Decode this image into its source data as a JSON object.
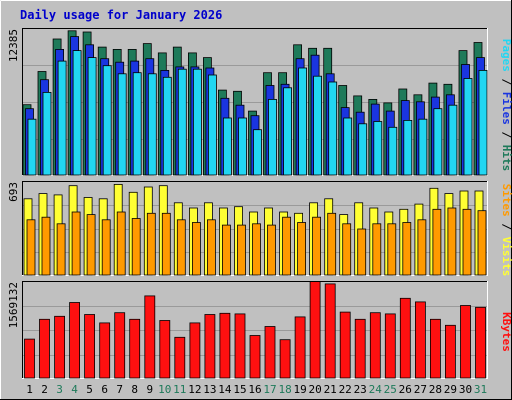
{
  "title": "Daily usage for January 2026",
  "colors": {
    "background": "#c0c0c0",
    "plot": "#c0c0c0",
    "grid": "#9a9a9a",
    "hits": "#1e7a5a",
    "files": "#1a35e0",
    "pages": "#22d6f2",
    "visits": "#ffff33",
    "sites": "#ff9a00",
    "kbytes": "#ff1010",
    "title": "#0000cc",
    "weekend_label": "#1e7a5a",
    "weekday_label": "#000000"
  },
  "side_labels": {
    "pages": "Pages",
    "files": "Files",
    "hits": "Hits",
    "sites": "Sites",
    "visits": "Visits",
    "kbytes": "KBytes",
    "separator": " / "
  },
  "chart_data": [
    {
      "type": "bar",
      "panel": "hits-files-pages",
      "ylabel_max": "12385",
      "ylim": [
        0,
        12385
      ],
      "grid": true,
      "categories": [
        "1",
        "2",
        "3",
        "4",
        "5",
        "6",
        "7",
        "8",
        "9",
        "10",
        "11",
        "12",
        "13",
        "14",
        "15",
        "16",
        "17",
        "18",
        "19",
        "20",
        "21",
        "22",
        "23",
        "24",
        "25",
        "26",
        "27",
        "28",
        "29",
        "30",
        "31"
      ],
      "weekend_days": [
        "3",
        "4",
        "10",
        "11",
        "17",
        "18",
        "24",
        "25",
        "31"
      ],
      "series": [
        {
          "name": "Hits",
          "values": [
            6050,
            8900,
            11700,
            12400,
            12300,
            11000,
            10800,
            10800,
            11300,
            10500,
            11000,
            10500,
            10100,
            7300,
            7200,
            5500,
            8800,
            8800,
            11200,
            10900,
            10900,
            7700,
            6800,
            6500,
            6200,
            7400,
            6900,
            7900,
            7800,
            10700,
            11400
          ]
        },
        {
          "name": "Files",
          "values": [
            5700,
            8200,
            10800,
            11900,
            11200,
            10000,
            9700,
            9800,
            10000,
            9000,
            9300,
            9300,
            9200,
            6600,
            6000,
            5100,
            7700,
            7800,
            10000,
            10300,
            8700,
            5800,
            5400,
            6100,
            5500,
            6400,
            6300,
            6700,
            6900,
            9500,
            10100
          ]
        },
        {
          "name": "Pages",
          "values": [
            4800,
            7100,
            9800,
            10700,
            10100,
            9400,
            8700,
            8800,
            8700,
            8400,
            9100,
            9100,
            8600,
            4900,
            4900,
            3900,
            6500,
            7500,
            9200,
            8500,
            8000,
            4900,
            4400,
            4600,
            4100,
            4700,
            4800,
            5700,
            6000,
            8300,
            9000
          ]
        }
      ]
    },
    {
      "type": "bar",
      "panel": "visits-sites",
      "ylabel_max": "693",
      "ylim": [
        0,
        693
      ],
      "grid": true,
      "categories": [
        "1",
        "2",
        "3",
        "4",
        "5",
        "6",
        "7",
        "8",
        "9",
        "10",
        "11",
        "12",
        "13",
        "14",
        "15",
        "16",
        "17",
        "18",
        "19",
        "20",
        "21",
        "22",
        "23",
        "24",
        "25",
        "26",
        "27",
        "28",
        "29",
        "30",
        "31"
      ],
      "series": [
        {
          "name": "Visits",
          "values": [
            580,
            620,
            610,
            680,
            590,
            580,
            690,
            630,
            670,
            680,
            550,
            510,
            550,
            510,
            520,
            480,
            510,
            480,
            470,
            550,
            580,
            460,
            550,
            510,
            480,
            500,
            540,
            660,
            620,
            640,
            640
          ]
        },
        {
          "name": "Sites",
          "values": [
            420,
            440,
            390,
            480,
            460,
            420,
            480,
            430,
            470,
            470,
            420,
            400,
            420,
            380,
            380,
            390,
            380,
            440,
            400,
            440,
            470,
            390,
            350,
            390,
            390,
            400,
            420,
            500,
            510,
            500,
            490
          ]
        }
      ]
    },
    {
      "type": "bar",
      "panel": "kbytes",
      "ylabel_max": "1569132",
      "ylim": [
        0,
        1569132
      ],
      "grid": true,
      "categories": [
        "1",
        "2",
        "3",
        "4",
        "5",
        "6",
        "7",
        "8",
        "9",
        "10",
        "11",
        "12",
        "13",
        "14",
        "15",
        "16",
        "17",
        "18",
        "19",
        "20",
        "21",
        "22",
        "23",
        "24",
        "25",
        "26",
        "27",
        "28",
        "29",
        "30",
        "31"
      ],
      "series": [
        {
          "name": "KBytes",
          "values": [
            650000,
            980000,
            1030000,
            1260000,
            1060000,
            920000,
            1090000,
            980000,
            1370000,
            960000,
            680000,
            920000,
            1060000,
            1080000,
            1070000,
            710000,
            860000,
            640000,
            1020000,
            1610000,
            1570000,
            1100000,
            980000,
            1090000,
            1070000,
            1330000,
            1270000,
            980000,
            880000,
            1210000,
            1180000
          ]
        }
      ]
    }
  ]
}
